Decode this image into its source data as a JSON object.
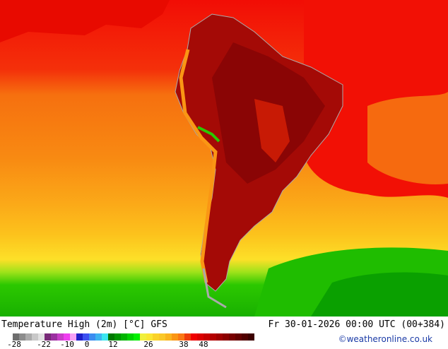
{
  "title": "Temperature High (2m) [°C] GFS",
  "valid_time": "Fr 30-01-2026 00:00 UTC (00+384)",
  "credit": "©weatheronline.co.uk",
  "legend": {
    "ticks": [
      "-28",
      "-22",
      "-10",
      "0",
      "12",
      "26",
      "38",
      "48"
    ],
    "colors": [
      "#6e6e6e",
      "#8c8c8c",
      "#aaaaaa",
      "#c8c8c8",
      "#e1e1e1",
      "#782a78",
      "#9b30a0",
      "#c83cc8",
      "#f03cf0",
      "#f5a0f5",
      "#1e1ec8",
      "#3c50f0",
      "#3c8cf0",
      "#3cb4f0",
      "#3ce6f0",
      "#007800",
      "#009600",
      "#00b400",
      "#00d200",
      "#00f000",
      "#f0f03c",
      "#fae632",
      "#fad228",
      "#fac828",
      "#fab41e",
      "#fa9614",
      "#fa7814",
      "#f03c0a",
      "#f00000",
      "#dc0000",
      "#c80000",
      "#b40000",
      "#a00000",
      "#8c0000",
      "#780000",
      "#640000",
      "#500000",
      "#3c0000"
    ]
  }
}
